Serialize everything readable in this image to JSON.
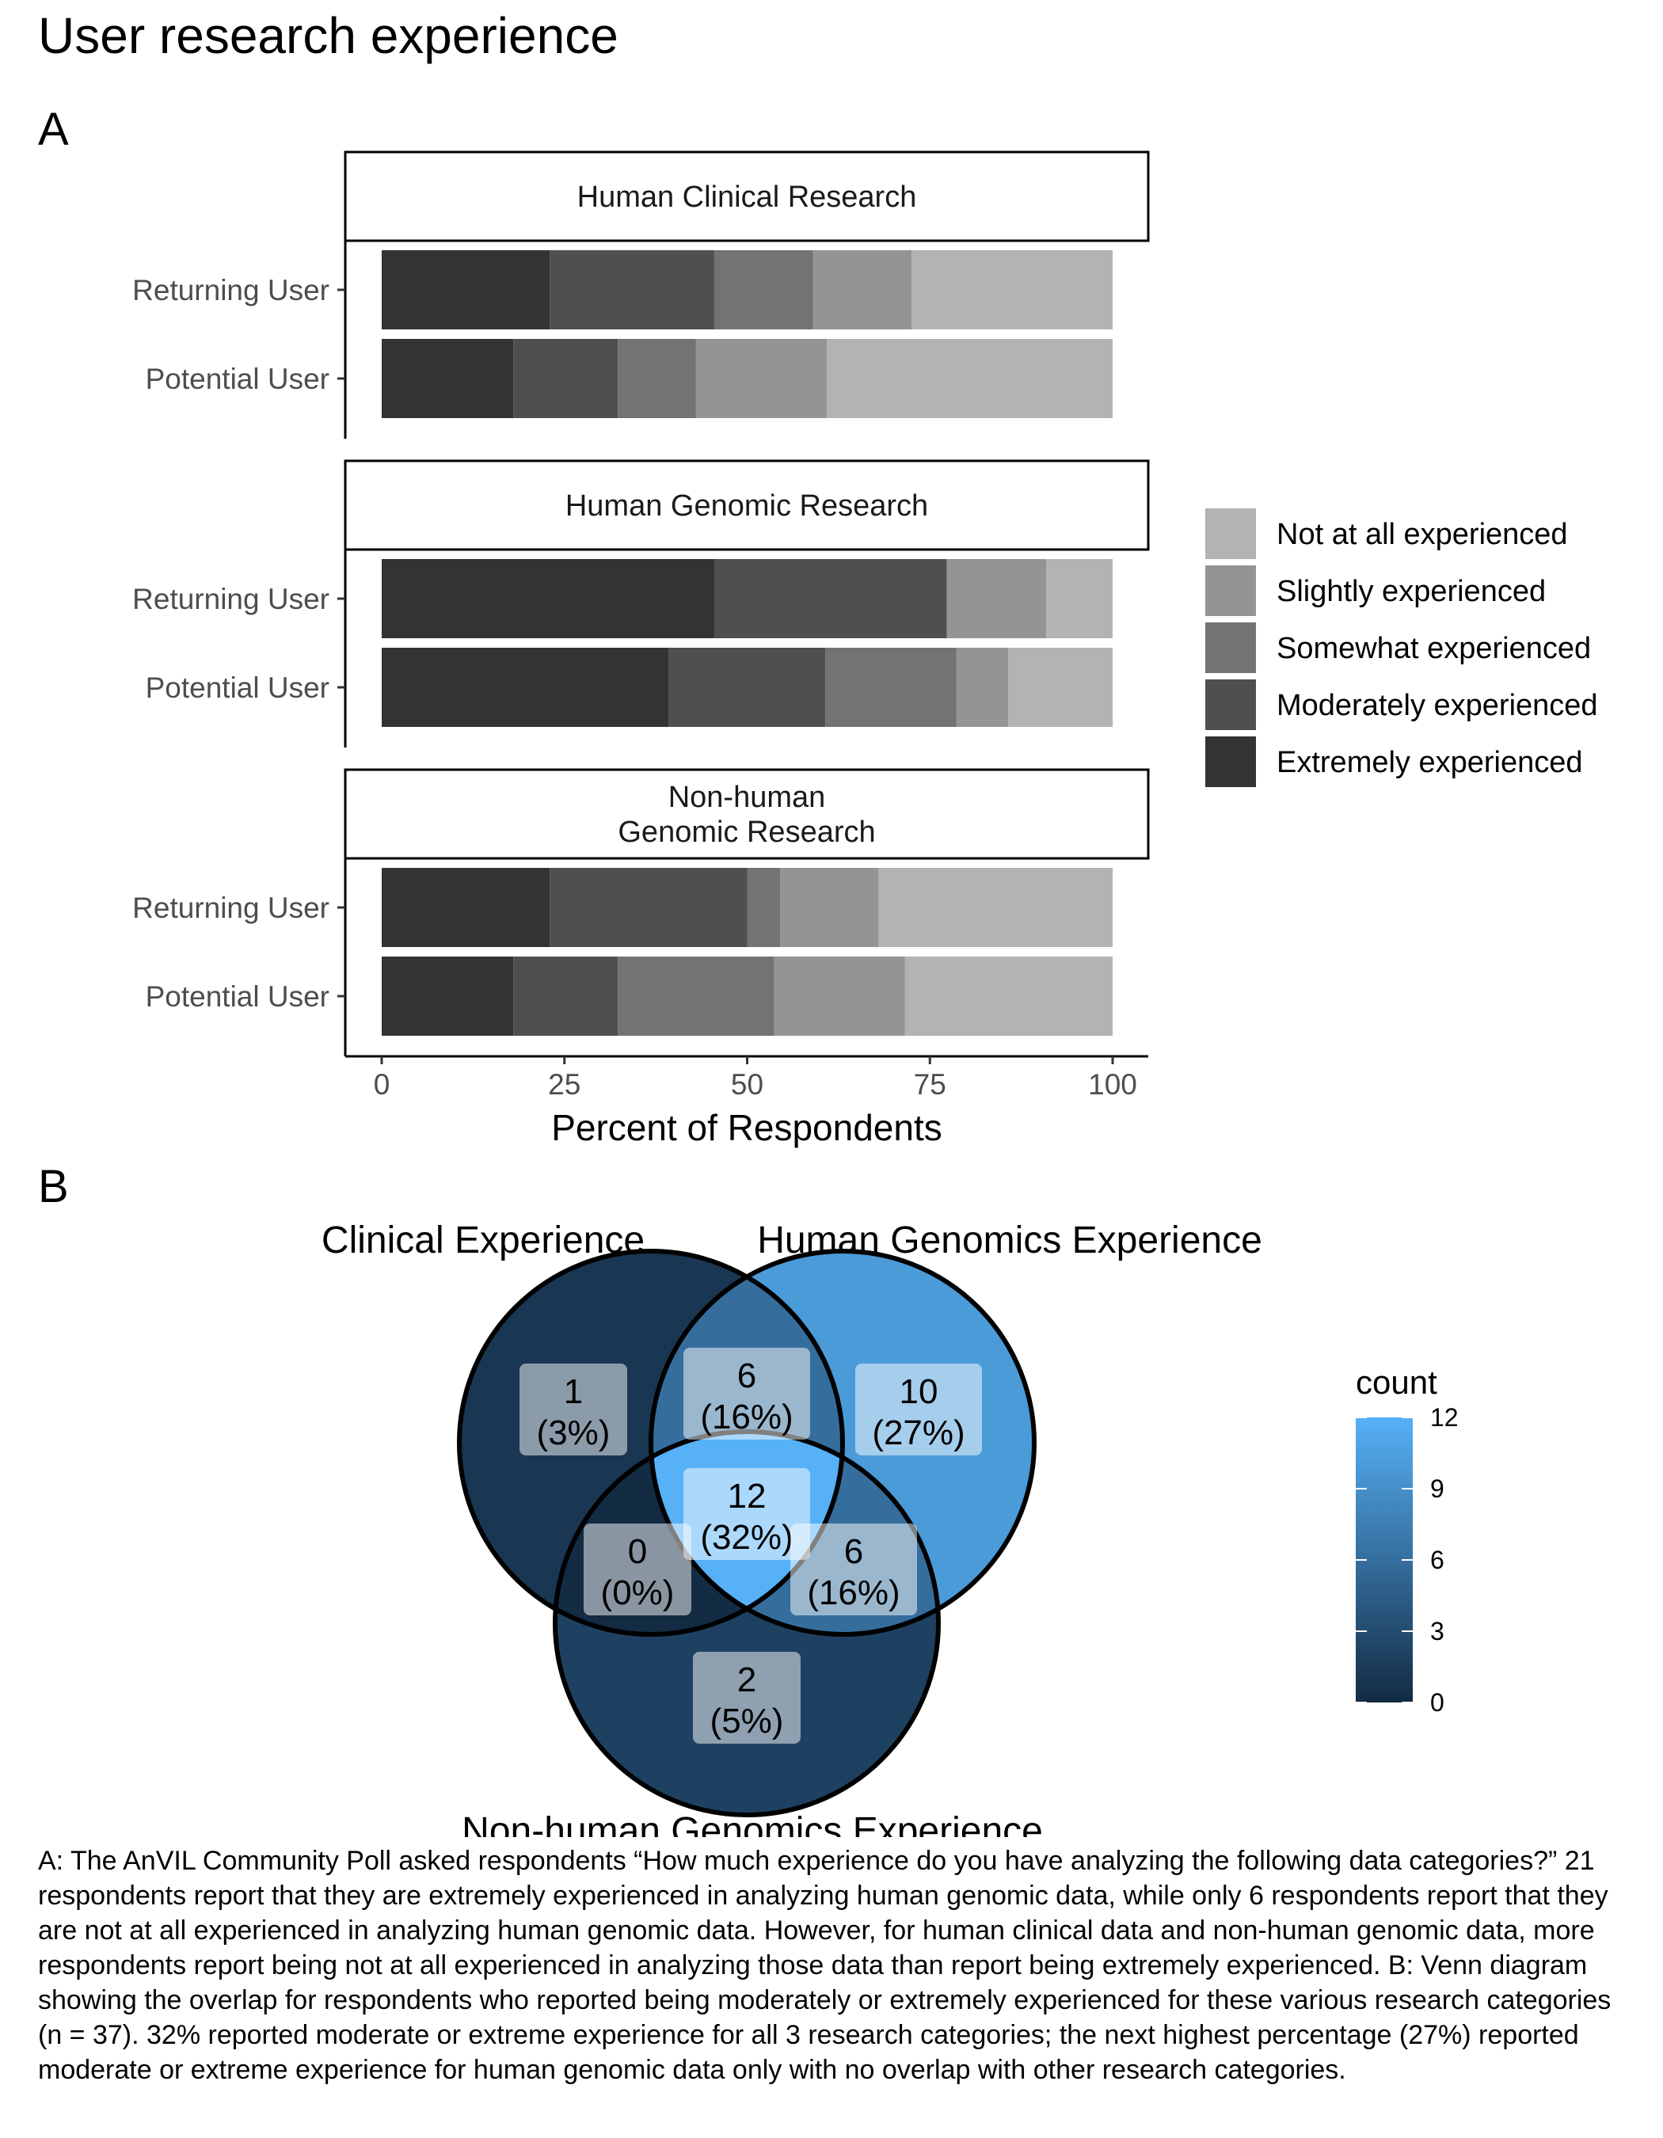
{
  "title": "User research experience",
  "panel_labels": {
    "a": "A",
    "b": "B"
  },
  "chart_data": [
    {
      "type": "bar",
      "orientation": "horizontal",
      "stacked": true,
      "facets": [
        "Human Clinical Research",
        "Human Genomic Research",
        "Non-human\nGenomic Research"
      ],
      "categories": [
        "Returning User",
        "Potential User"
      ],
      "xlabel": "Percent of Respondents",
      "ylabel": "",
      "xlim": [
        0,
        100
      ],
      "xticks": [
        "0",
        "25",
        "50",
        "75",
        "100"
      ],
      "grid": false,
      "legend_position": "right",
      "series": [
        {
          "name": "Extremely experienced",
          "color": "#333333",
          "values": [
            [
              23,
              18
            ],
            [
              45.5,
              39.3
            ],
            [
              23,
              18
            ]
          ]
        },
        {
          "name": "Moderately experienced",
          "color": "#4f4f4f",
          "values": [
            [
              22.5,
              14.3
            ],
            [
              31.8,
              21.4
            ],
            [
              27,
              14.3
            ]
          ]
        },
        {
          "name": "Somewhat experienced",
          "color": "#737373",
          "values": [
            [
              13.5,
              10.7
            ],
            [
              0,
              17.9
            ],
            [
              4.5,
              21.4
            ]
          ]
        },
        {
          "name": "Slightly experienced",
          "color": "#949494",
          "values": [
            [
              13.5,
              17.9
            ],
            [
              13.6,
              7.1
            ],
            [
              13.5,
              17.9
            ]
          ]
        },
        {
          "name": "Not at all experienced",
          "color": "#b3b3b3",
          "values": [
            [
              27.5,
              39.1
            ],
            [
              9.1,
              14.3
            ],
            [
              32,
              28.4
            ]
          ]
        }
      ]
    },
    {
      "type": "venn",
      "sets": [
        "Clinical Experience",
        "Human Genomics Experience",
        "Non-human Genomics Experience"
      ],
      "regions": [
        {
          "region": "Clinical only",
          "count": "1",
          "percent": "(3%)",
          "value": 1
        },
        {
          "region": "Clinical & Human Genomics",
          "count": "6",
          "percent": "(16%)",
          "value": 6
        },
        {
          "region": "Human Genomics only",
          "count": "10",
          "percent": "(27%)",
          "value": 10
        },
        {
          "region": "All three",
          "count": "12",
          "percent": "(32%)",
          "value": 12
        },
        {
          "region": "Clinical & Non-human Genomics",
          "count": "0",
          "percent": "(0%)",
          "value": 0
        },
        {
          "region": "Human & Non-human Genomics",
          "count": "6",
          "percent": "(16%)",
          "value": 6
        },
        {
          "region": "Non-human Genomics only",
          "count": "2",
          "percent": "(5%)",
          "value": 2
        }
      ],
      "colorbar": {
        "title": "count",
        "ticks": [
          "0",
          "3",
          "6",
          "9",
          "12"
        ],
        "range": [
          0,
          12
        ],
        "low_color": "#132b43",
        "high_color": "#56b1f7"
      }
    }
  ],
  "caption": "A: The AnVIL Community Poll asked respondents “How much experience do you have analyzing the following data categories?” 21 respondents report that they are extremely experienced in analyzing human genomic data, while only 6 respondents report that they are not at all experienced in analyzing human genomic data. However, for human clinical data and non-human genomic data, more respondents report being not at all experienced in analyzing those data than report being extremely experienced. B: Venn diagram showing the overlap for respondents who reported being moderately or extremely experienced for these various research categories (n = 37). 32% reported moderate or extreme experience for all 3 research categories; the next highest percentage (27%) reported moderate or extreme experience for human genomic data only with no overlap with other research categories."
}
